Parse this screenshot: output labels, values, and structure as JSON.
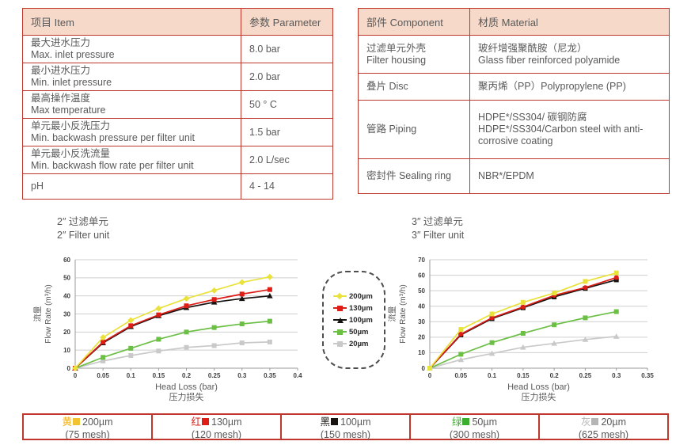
{
  "colors": {
    "table_border": "#bf362c",
    "header_bg": "#f6d9c9",
    "text": "#595959"
  },
  "spec_table": {
    "headers": [
      "项目 Item",
      "参数 Parameter"
    ],
    "rows": [
      {
        "zh": "最大进水压力",
        "en": "Max. inlet pressure",
        "value": "8.0 bar"
      },
      {
        "zh": "最小进水压力",
        "en": "Min. inlet pressure",
        "value": "2.0 bar"
      },
      {
        "zh": "最高操作温度",
        "en": "Max temperature",
        "value": "50 ° C"
      },
      {
        "zh": "单元最小反洗压力",
        "en": "Min. backwash pressure per filter unit",
        "value": "1.5 bar"
      },
      {
        "zh": "单元最小反洗流量",
        "en": "Min. backwash flow rate per filter unit",
        "value": "2.0 L/sec"
      },
      {
        "zh": "pH",
        "en": "",
        "value": "4 - 14"
      }
    ]
  },
  "material_table": {
    "headers": [
      "部件 Component",
      "材质 Material"
    ],
    "rows": [
      {
        "name_zh": "过滤单元外壳",
        "name_en": "Filter housing",
        "line1": "玻纤增强聚酰胺（尼龙）",
        "line2": "Glass fiber reinforced polyamide"
      },
      {
        "name_zh": "叠片 Disc",
        "name_en": "",
        "line1": "聚丙烯（PP）Polypropylene (PP)",
        "line2": ""
      },
      {
        "name_zh": "管路 Piping",
        "name_en": "",
        "line1": "HDPE*/SS304/ 碳钢防腐",
        "line2": "HDPE*/SS304/Carbon steel with anti-corrosive coating"
      },
      {
        "name_zh": "密封件 Sealing ring",
        "name_en": "",
        "line1": "NBR*/EPDM",
        "line2": ""
      }
    ]
  },
  "chart_data": [
    {
      "type": "line",
      "title_zh": "2″ 过滤单元",
      "title_en": "2″ Filter unit",
      "xlabel_en": "Head Loss (bar)",
      "xlabel_zh": "压力损失",
      "ylabel_zh": "流量",
      "ylabel_en": "Flow Rate (m³/h)",
      "xlim": [
        0,
        0.4
      ],
      "ylim": [
        0,
        60
      ],
      "ytick_step": 10,
      "xticks": [
        0,
        0.05,
        0.1,
        0.15,
        0.2,
        0.25,
        0.3,
        0.35,
        0.4
      ],
      "grid": "horizontal",
      "x": [
        0,
        0.05,
        0.1,
        0.15,
        0.2,
        0.25,
        0.3,
        0.35
      ],
      "series": [
        {
          "name": "200µm",
          "color": "#e9e23a",
          "marker": "diamond",
          "values": [
            0,
            17,
            26.5,
            33,
            38.5,
            43,
            47.5,
            50.5
          ]
        },
        {
          "name": "130µm",
          "color": "#dd1d16",
          "marker": "square",
          "values": [
            0,
            14.5,
            23.5,
            29.5,
            34.5,
            38,
            41,
            43.5
          ]
        },
        {
          "name": "100µm",
          "color": "#171311",
          "marker": "triangle",
          "values": [
            0,
            14,
            23,
            29,
            33.5,
            36.5,
            38.5,
            40
          ]
        },
        {
          "name": "50µm",
          "color": "#6bbf45",
          "marker": "square",
          "values": [
            0,
            6,
            11,
            16,
            20,
            22.5,
            24.5,
            26
          ]
        },
        {
          "name": "20µm",
          "color": "#c9c9c9",
          "marker": "square",
          "values": [
            0,
            4,
            7,
            9.5,
            11.5,
            12.5,
            14,
            14.5
          ]
        }
      ]
    },
    {
      "type": "line",
      "title_zh": "3″ 过滤单元",
      "title_en": "3″ Filter unit",
      "xlabel_en": "Head Loss (bar)",
      "xlabel_zh": "压力损失",
      "ylabel_zh": "流量",
      "ylabel_en": "Flow Rate (m³/h)",
      "xlim": [
        0,
        0.35
      ],
      "ylim": [
        0,
        70
      ],
      "ytick_step": 10,
      "xticks": [
        0,
        0.05,
        0.1,
        0.15,
        0.2,
        0.25,
        0.3,
        0.35
      ],
      "grid": "horizontal",
      "x": [
        0,
        0.05,
        0.1,
        0.15,
        0.2,
        0.25,
        0.3
      ],
      "series": [
        {
          "name": "200µm",
          "color": "#e9e23a",
          "marker": "square",
          "values": [
            0,
            25,
            35,
            42.5,
            48.5,
            56,
            61.5
          ]
        },
        {
          "name": "130µm",
          "color": "#dd1d16",
          "marker": "circle",
          "values": [
            0,
            22,
            32.5,
            39.5,
            47,
            52,
            58.5
          ]
        },
        {
          "name": "100µm",
          "color": "#171311",
          "marker": "square",
          "values": [
            0,
            21.5,
            32,
            39,
            46,
            51.5,
            57
          ]
        },
        {
          "name": "50µm",
          "color": "#6bbf45",
          "marker": "square",
          "values": [
            0,
            9,
            16.5,
            22.5,
            28,
            32.5,
            36.5
          ]
        },
        {
          "name": "20µm",
          "color": "#c9c9c9",
          "marker": "triangle",
          "values": [
            0,
            5.5,
            9.5,
            13.5,
            16,
            18.5,
            20.5
          ]
        }
      ]
    }
  ],
  "mini_legend": {
    "items": [
      {
        "label": "200µm",
        "color": "#e9e23a",
        "marker": "diamond"
      },
      {
        "label": "130µm",
        "color": "#dd1d16",
        "marker": "square"
      },
      {
        "label": "100µm",
        "color": "#171311",
        "marker": "triangle"
      },
      {
        "label": "50µm",
        "color": "#6bbf45",
        "marker": "square"
      },
      {
        "label": "20µm",
        "color": "#c9c9c9",
        "marker": "square"
      }
    ]
  },
  "bottom_legend": {
    "cells": [
      {
        "cn": "黄",
        "color": "#f2ae13",
        "swatch": "#f1c232",
        "size": "200µm",
        "mesh": "(75 mesh)"
      },
      {
        "cn": "红",
        "color": "#dd1d16",
        "swatch": "#dd1d16",
        "size": "130µm",
        "mesh": "(120 mesh)"
      },
      {
        "cn": "黑",
        "color": "#171311",
        "swatch": "#171311",
        "size": "100µm",
        "mesh": "(150 mesh)"
      },
      {
        "cn": "绿",
        "color": "#3bae2e",
        "swatch": "#3bae2e",
        "size": "50µm",
        "mesh": "(300 mesh)"
      },
      {
        "cn": "灰",
        "color": "#b5b5b5",
        "swatch": "#b5b5b5",
        "size": "20µm",
        "mesh": "(625 mesh)"
      }
    ]
  }
}
